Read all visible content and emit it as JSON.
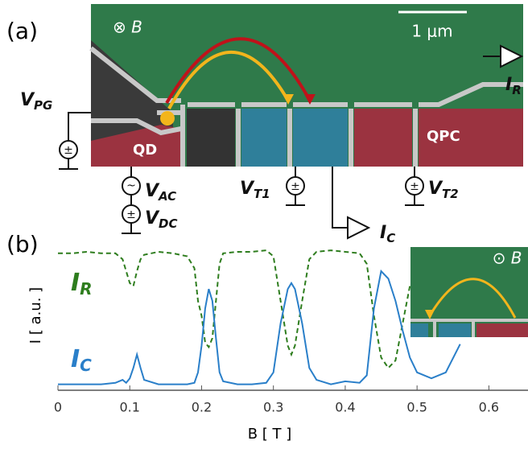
{
  "panel_a": {
    "label": "(a)",
    "field": "⊗ B",
    "scale_bar": "1 μm",
    "regions": [
      "QD",
      "QPC"
    ],
    "symbols": [
      {
        "main": "V",
        "sub": "PG"
      },
      {
        "main": "V",
        "sub": "AC"
      },
      {
        "main": "V",
        "sub": "DC"
      },
      {
        "main": "V",
        "sub": "T1"
      },
      {
        "main": "V",
        "sub": "T2"
      },
      {
        "main": "I",
        "sub": "R"
      },
      {
        "main": "I",
        "sub": "C"
      }
    ]
  },
  "chart_data": {
    "type": "line",
    "label": "(b)",
    "inset_field": "⊙ B",
    "xlabel": "B [ T ]",
    "ylabel": "I [ a.u. ]",
    "xlim": [
      0,
      0.65
    ],
    "xticks": [
      0,
      0.1,
      0.2,
      0.3,
      0.4,
      0.5,
      0.6
    ],
    "ylim": [
      0,
      1
    ],
    "x": [
      0,
      0.02,
      0.04,
      0.06,
      0.08,
      0.09,
      0.095,
      0.1,
      0.105,
      0.11,
      0.115,
      0.12,
      0.14,
      0.16,
      0.18,
      0.19,
      0.195,
      0.2,
      0.205,
      0.21,
      0.215,
      0.22,
      0.225,
      0.23,
      0.25,
      0.27,
      0.29,
      0.3,
      0.31,
      0.32,
      0.325,
      0.33,
      0.34,
      0.35,
      0.36,
      0.38,
      0.4,
      0.42,
      0.43,
      0.44,
      0.45,
      0.46,
      0.47,
      0.48,
      0.49,
      0.5,
      0.52,
      0.54,
      0.56
    ],
    "series": [
      {
        "name": "IR",
        "color": "#2e7d1e",
        "dashed": true,
        "values": [
          0.92,
          0.92,
          0.93,
          0.92,
          0.92,
          0.88,
          0.8,
          0.72,
          0.7,
          0.8,
          0.88,
          0.91,
          0.93,
          0.92,
          0.9,
          0.82,
          0.6,
          0.5,
          0.32,
          0.29,
          0.35,
          0.6,
          0.85,
          0.92,
          0.93,
          0.93,
          0.94,
          0.9,
          0.6,
          0.3,
          0.24,
          0.3,
          0.6,
          0.88,
          0.93,
          0.94,
          0.93,
          0.92,
          0.85,
          0.5,
          0.22,
          0.15,
          0.2,
          0.45,
          0.7,
          null,
          null,
          null,
          null
        ]
      },
      {
        "name": "IC",
        "color": "#2a7fc9",
        "dashed": false,
        "values": [
          0.04,
          0.04,
          0.04,
          0.04,
          0.05,
          0.07,
          0.05,
          0.08,
          0.15,
          0.24,
          0.15,
          0.07,
          0.04,
          0.04,
          0.04,
          0.05,
          0.12,
          0.3,
          0.55,
          0.68,
          0.6,
          0.35,
          0.12,
          0.06,
          0.04,
          0.04,
          0.05,
          0.12,
          0.45,
          0.68,
          0.72,
          0.68,
          0.45,
          0.15,
          0.07,
          0.04,
          0.06,
          0.05,
          0.1,
          0.55,
          0.8,
          0.75,
          0.6,
          0.4,
          0.22,
          0.12,
          0.08,
          0.12,
          0.31
        ]
      }
    ]
  }
}
